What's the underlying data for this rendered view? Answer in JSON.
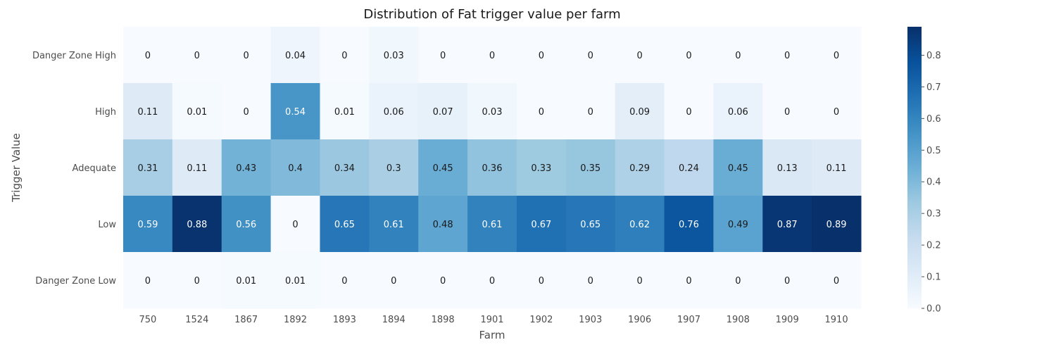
{
  "chart_data": {
    "type": "heatmap",
    "title": "Distribution of Fat trigger value per farm",
    "xlabel": "Farm",
    "ylabel": "Trigger Value",
    "x_categories": [
      "750",
      "1524",
      "1867",
      "1892",
      "1893",
      "1894",
      "1898",
      "1901",
      "1902",
      "1903",
      "1906",
      "1907",
      "1908",
      "1909",
      "1910"
    ],
    "y_categories": [
      "Danger Zone High",
      "High",
      "Adequate",
      "Low",
      "Danger Zone Low"
    ],
    "values": [
      [
        0,
        0,
        0,
        0.04,
        0,
        0.03,
        0,
        0,
        0,
        0,
        0,
        0,
        0,
        0,
        0
      ],
      [
        0.11,
        0.01,
        0,
        0.54,
        0.01,
        0.06,
        0.07,
        0.03,
        0,
        0,
        0.09,
        0,
        0.06,
        0,
        0
      ],
      [
        0.31,
        0.11,
        0.43,
        0.4,
        0.34,
        0.3,
        0.45,
        0.36,
        0.33,
        0.35,
        0.29,
        0.24,
        0.45,
        0.13,
        0.11
      ],
      [
        0.59,
        0.88,
        0.56,
        0,
        0.65,
        0.61,
        0.48,
        0.61,
        0.67,
        0.65,
        0.62,
        0.76,
        0.49,
        0.87,
        0.89
      ],
      [
        0,
        0,
        0.01,
        0.01,
        0,
        0,
        0,
        0,
        0,
        0,
        0,
        0,
        0,
        0,
        0
      ]
    ],
    "colormap": "Blues",
    "colorbar": {
      "vmin": 0.0,
      "vmax": 0.89,
      "ticks": [
        "0.0",
        "0.1",
        "0.2",
        "0.3",
        "0.4",
        "0.5",
        "0.6",
        "0.7",
        "0.8"
      ]
    },
    "grid": false
  }
}
